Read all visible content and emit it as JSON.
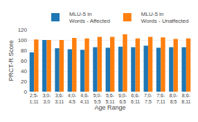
{
  "chart_data": {
    "type": "bar",
    "categories": [
      "2;5-\n1;11",
      "3;0-\n3;0",
      "3;6-\n3;11",
      "4;0-\n4;5",
      "4;6-\n4;11",
      "5;0-\n5;5",
      "5;6-\n5;11",
      "6;0-\n6;5",
      "6;6-\n6;11",
      "7;0-\n7;5",
      "7;6-\n7;11",
      "8;0-\n8;5",
      "8;6-\n8;11"
    ],
    "series": [
      {
        "name": "MLU-5 in\nWords - Affected",
        "values": [
          76,
          100,
          84,
          82,
          81,
          86,
          85,
          87,
          86,
          89,
          85,
          86,
          86
        ]
      },
      {
        "name": "MLU-5 in\nWords - Unaffected",
        "values": [
          101,
          100,
          100,
          104,
          103,
          106,
          106,
          111,
          103,
          106,
          105,
          102,
          103
        ]
      }
    ],
    "xlabel": "Age Range",
    "ylabel": "PRCT-R Score",
    "ylim": [
      0,
      120
    ],
    "yticks": [
      0,
      20,
      40,
      60,
      80,
      100,
      120
    ],
    "grid": true,
    "legend": "upper right"
  }
}
